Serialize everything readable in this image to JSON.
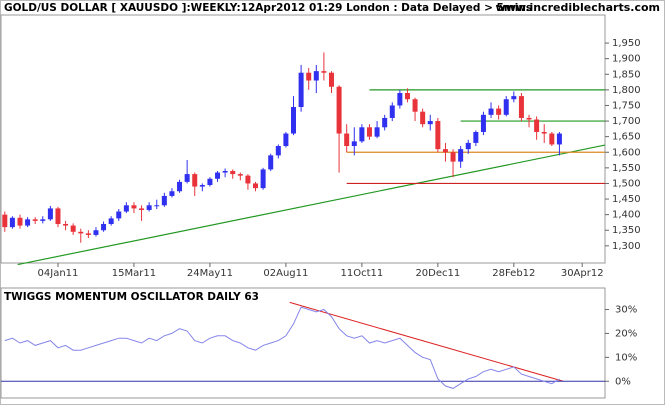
{
  "chart_data": [
    {
      "type": "candlestick",
      "title": "GOLD/US DOLLAR [ XAUUSDO ]:WEEKLY:12Apr2012 01:29 London : Data Delayed > 5mins",
      "subtitle": "www.incrediblecharts.com",
      "up_color": "#3030f0",
      "down_color": "#e8333a",
      "x": [
        -7,
        -6,
        -5,
        -4,
        -3,
        -2,
        -1,
        0,
        1,
        2,
        3,
        4,
        5,
        6,
        7,
        8,
        9,
        10,
        11,
        12,
        13,
        14,
        15,
        16,
        17,
        18,
        19,
        20,
        21,
        22,
        23,
        24,
        25,
        26,
        27,
        28,
        29,
        30,
        31,
        32,
        33,
        34,
        35,
        36,
        37,
        38,
        39,
        40,
        41,
        42,
        43,
        44,
        45,
        46,
        47,
        48,
        49,
        50,
        51,
        52,
        53,
        54,
        55,
        56,
        57,
        58,
        59,
        60,
        61,
        62,
        63,
        64,
        65,
        66
      ],
      "ohlc": [
        [
          1400,
          1410,
          1345,
          1360
        ],
        [
          1360,
          1395,
          1355,
          1390
        ],
        [
          1390,
          1400,
          1355,
          1365
        ],
        [
          1365,
          1392,
          1360,
          1385
        ],
        [
          1385,
          1392,
          1370,
          1380
        ],
        [
          1380,
          1395,
          1372,
          1385
        ],
        [
          1385,
          1428,
          1380,
          1420
        ],
        [
          1420,
          1425,
          1360,
          1370
        ],
        [
          1370,
          1380,
          1350,
          1365
        ],
        [
          1365,
          1372,
          1335,
          1345
        ],
        [
          1345,
          1355,
          1310,
          1340
        ],
        [
          1340,
          1350,
          1325,
          1335
        ],
        [
          1335,
          1360,
          1330,
          1350
        ],
        [
          1350,
          1378,
          1345,
          1370
        ],
        [
          1370,
          1395,
          1365,
          1388
        ],
        [
          1388,
          1418,
          1380,
          1410
        ],
        [
          1410,
          1440,
          1405,
          1430
        ],
        [
          1430,
          1440,
          1405,
          1420
        ],
        [
          1420,
          1430,
          1380,
          1415
        ],
        [
          1415,
          1440,
          1410,
          1430
        ],
        [
          1430,
          1448,
          1418,
          1430
        ],
        [
          1430,
          1470,
          1425,
          1460
        ],
        [
          1460,
          1485,
          1455,
          1475
        ],
        [
          1475,
          1512,
          1470,
          1505
        ],
        [
          1505,
          1575,
          1500,
          1530
        ],
        [
          1530,
          1535,
          1460,
          1490
        ],
        [
          1490,
          1500,
          1475,
          1495
        ],
        [
          1495,
          1520,
          1490,
          1515
        ],
        [
          1515,
          1540,
          1505,
          1535
        ],
        [
          1535,
          1548,
          1520,
          1540
        ],
        [
          1540,
          1545,
          1515,
          1530
        ],
        [
          1530,
          1535,
          1510,
          1525
        ],
        [
          1525,
          1530,
          1480,
          1500
        ],
        [
          1500,
          1505,
          1475,
          1485
        ],
        [
          1485,
          1550,
          1480,
          1545
        ],
        [
          1545,
          1595,
          1540,
          1590
        ],
        [
          1590,
          1625,
          1580,
          1620
        ],
        [
          1620,
          1665,
          1615,
          1660
        ],
        [
          1660,
          1780,
          1655,
          1745
        ],
        [
          1745,
          1880,
          1730,
          1855
        ],
        [
          1855,
          1870,
          1800,
          1830
        ],
        [
          1830,
          1880,
          1790,
          1860
        ],
        [
          1860,
          1920,
          1830,
          1855
        ],
        [
          1855,
          1860,
          1790,
          1810
        ],
        [
          1810,
          1815,
          1535,
          1660
        ],
        [
          1660,
          1690,
          1600,
          1620
        ],
        [
          1620,
          1680,
          1590,
          1635
        ],
        [
          1635,
          1690,
          1630,
          1680
        ],
        [
          1680,
          1690,
          1640,
          1650
        ],
        [
          1650,
          1700,
          1645,
          1680
        ],
        [
          1680,
          1720,
          1670,
          1710
        ],
        [
          1710,
          1760,
          1700,
          1750
        ],
        [
          1750,
          1800,
          1740,
          1790
        ],
        [
          1790,
          1805,
          1760,
          1770
        ],
        [
          1770,
          1775,
          1700,
          1730
        ],
        [
          1730,
          1740,
          1680,
          1690
        ],
        [
          1690,
          1720,
          1670,
          1700
        ],
        [
          1700,
          1710,
          1600,
          1610
        ],
        [
          1610,
          1630,
          1570,
          1600
        ],
        [
          1600,
          1610,
          1520,
          1570
        ],
        [
          1570,
          1620,
          1550,
          1610
        ],
        [
          1610,
          1640,
          1595,
          1630
        ],
        [
          1630,
          1670,
          1620,
          1665
        ],
        [
          1665,
          1730,
          1655,
          1720
        ],
        [
          1720,
          1760,
          1710,
          1740
        ],
        [
          1740,
          1750,
          1705,
          1720
        ],
        [
          1720,
          1780,
          1715,
          1770
        ],
        [
          1770,
          1795,
          1760,
          1780
        ],
        [
          1780,
          1790,
          1700,
          1710
        ],
        [
          1710,
          1720,
          1680,
          1705
        ],
        [
          1705,
          1715,
          1640,
          1665
        ],
        [
          1665,
          1690,
          1630,
          1660
        ],
        [
          1660,
          1665,
          1620,
          1625
        ],
        [
          1625,
          1665,
          1590,
          1660
        ]
      ],
      "xlim": [
        -7.5,
        72
      ],
      "xticks": [
        {
          "value": 0,
          "label": "04Jan11"
        },
        {
          "value": 10,
          "label": "15Mar11"
        },
        {
          "value": 20,
          "label": "24May11"
        },
        {
          "value": 30,
          "label": "02Aug11"
        },
        {
          "value": 40,
          "label": "11Oct11"
        },
        {
          "value": 50,
          "label": "20Dec11"
        },
        {
          "value": 60,
          "label": "28Feb12"
        },
        {
          "value": 69,
          "label": "30Apr12"
        }
      ],
      "ylim": [
        1245,
        2040
      ],
      "yticks": [
        {
          "value": 1300,
          "label": "1,300"
        },
        {
          "value": 1350,
          "label": "1,350"
        },
        {
          "value": 1400,
          "label": "1,400"
        },
        {
          "value": 1450,
          "label": "1,450"
        },
        {
          "value": 1500,
          "label": "1,500"
        },
        {
          "value": 1550,
          "label": "1,550"
        },
        {
          "value": 1600,
          "label": "1,600"
        },
        {
          "value": 1650,
          "label": "1,650"
        },
        {
          "value": 1700,
          "label": "1,700"
        },
        {
          "value": 1750,
          "label": "1,750"
        },
        {
          "value": 1800,
          "label": "1,800"
        },
        {
          "value": 1850,
          "label": "1,850"
        },
        {
          "value": 1900,
          "label": "1,900"
        },
        {
          "value": 1950,
          "label": "1,950"
        }
      ],
      "lines": [
        {
          "x": [
            -5.3,
            72
          ],
          "y": [
            1240,
            1623
          ],
          "color": "#229922"
        },
        {
          "x": [
            41,
            72
          ],
          "y": [
            1800,
            1800
          ],
          "color": "#229922"
        },
        {
          "x": [
            53,
            72
          ],
          "y": [
            1700,
            1700
          ],
          "color": "#229922"
        },
        {
          "x": [
            38,
            72
          ],
          "y": [
            1600,
            1600
          ],
          "color": "#dd8822"
        },
        {
          "x": [
            38,
            72
          ],
          "y": [
            1500,
            1500
          ],
          "color": "#cc2222"
        }
      ]
    },
    {
      "type": "line",
      "title": "TWIGGS MOMENTUM OSCILLATOR DAILY 63",
      "x": [
        -7,
        -6,
        -5,
        -4,
        -3,
        -2,
        -1,
        0,
        1,
        2,
        3,
        4,
        5,
        6,
        7,
        8,
        9,
        10,
        11,
        12,
        13,
        14,
        15,
        16,
        17,
        18,
        19,
        20,
        21,
        22,
        23,
        24,
        25,
        26,
        27,
        28,
        29,
        30,
        31,
        32,
        33,
        34,
        35,
        36,
        37,
        38,
        39,
        40,
        41,
        42,
        43,
        44,
        45,
        46,
        47,
        48,
        49,
        50,
        51,
        52,
        53,
        54,
        55,
        56,
        57,
        58,
        59,
        60,
        61,
        62,
        63,
        64,
        65,
        66
      ],
      "series": [
        {
          "color": "#8585ea",
          "values": [
            17,
            18,
            16,
            17,
            15,
            16,
            17,
            14,
            15,
            13,
            13,
            14,
            15,
            16,
            17,
            18,
            18,
            17,
            16,
            18,
            17,
            19,
            20,
            22,
            21,
            17,
            16,
            18,
            19,
            19,
            17,
            16,
            14,
            13,
            15,
            16,
            17,
            19,
            24,
            31,
            30,
            29,
            30,
            27,
            22,
            19,
            18,
            19,
            16,
            17,
            16,
            17,
            18,
            15,
            12,
            10,
            9,
            1,
            -2,
            -3,
            -1,
            1,
            2,
            4,
            5,
            4,
            5,
            6,
            3,
            2,
            1,
            0,
            -1,
            1
          ]
        }
      ],
      "xlim": [
        -7.5,
        72
      ],
      "ylim": [
        -7,
        39
      ],
      "yticks": [
        {
          "value": 0,
          "label": "0%"
        },
        {
          "value": 10,
          "label": "10%"
        },
        {
          "value": 20,
          "label": "20%"
        },
        {
          "value": 30,
          "label": "30%"
        }
      ],
      "lines": [
        {
          "x": [
            30.5,
            66.5
          ],
          "y": [
            33,
            0
          ],
          "color": "#dd2222"
        },
        {
          "x": [
            -7.5,
            72
          ],
          "y": [
            0,
            0
          ],
          "color": "#3333aa"
        }
      ]
    }
  ]
}
